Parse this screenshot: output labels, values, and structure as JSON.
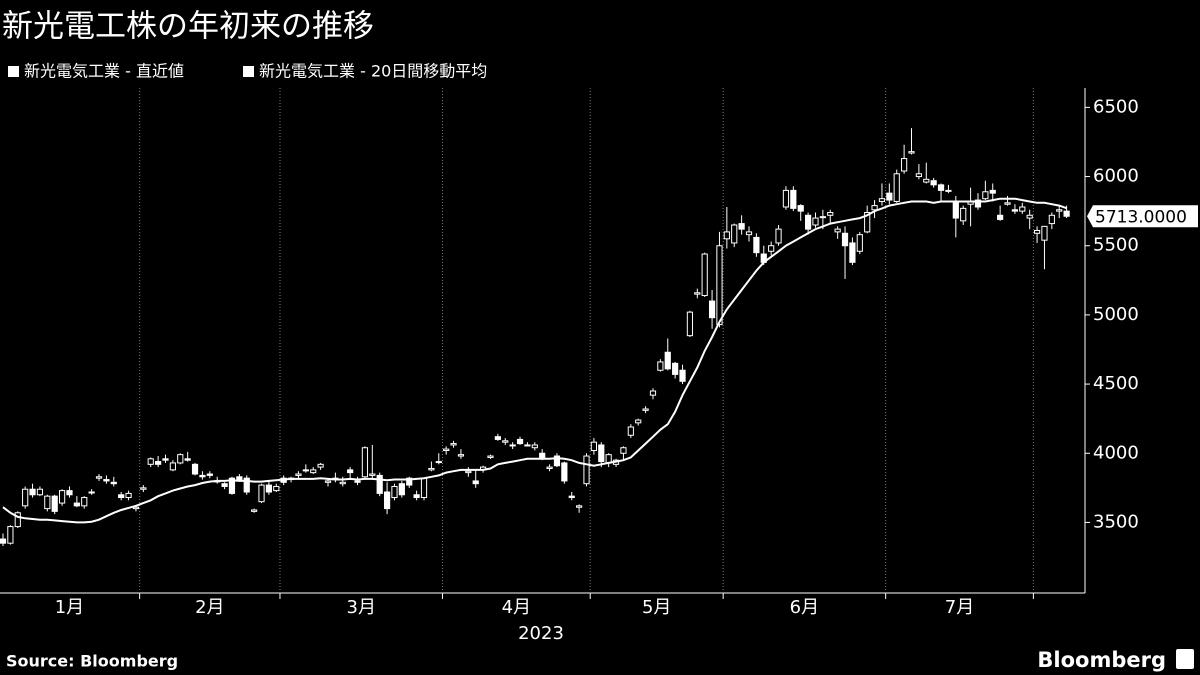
{
  "chart_data": {
    "type": "candlestick",
    "title": "新光電工株の年初来の推移",
    "legend": [
      "新光電気工業 - 直近値",
      "新光電気工業 - 20日間移動平均"
    ],
    "x_label": "2023",
    "source": "Source: Bloomberg",
    "brand": "Bloomberg",
    "ylim": [
      2990,
      6640
    ],
    "yticks": [
      3500,
      4000,
      4500,
      5000,
      5500,
      6000,
      6500
    ],
    "up_color": "#000000",
    "down_color": "#ffffff",
    "line_color": "#ffffff",
    "last_label": {
      "value": 5713,
      "label": "5713.0000"
    },
    "months": [
      {
        "label": "1月",
        "candles": [
          [
            3380,
            3420,
            3330,
            3350
          ],
          [
            3350,
            3480,
            3340,
            3470
          ],
          [
            3470,
            3580,
            3460,
            3570
          ],
          [
            3620,
            3760,
            3600,
            3740
          ],
          [
            3740,
            3780,
            3680,
            3700
          ],
          [
            3700,
            3760,
            3690,
            3740
          ],
          [
            3600,
            3700,
            3580,
            3690
          ],
          [
            3690,
            3700,
            3560,
            3580
          ],
          [
            3640,
            3740,
            3620,
            3730
          ],
          [
            3730,
            3760,
            3680,
            3700
          ],
          [
            3640,
            3690,
            3610,
            3620
          ],
          [
            3620,
            3690,
            3600,
            3680
          ],
          [
            3720,
            3740,
            3700,
            3720
          ],
          [
            3820,
            3850,
            3800,
            3830
          ],
          [
            3810,
            3840,
            3780,
            3800
          ],
          [
            3790,
            3830,
            3760,
            3780
          ],
          [
            3700,
            3720,
            3660,
            3680
          ],
          [
            3680,
            3730,
            3660,
            3710
          ],
          [
            3600,
            3620,
            3580,
            3610
          ]
        ],
        "ma": [
          3610,
          3570,
          3540,
          3530,
          3525,
          3520,
          3520,
          3515,
          3510,
          3505,
          3500,
          3500,
          3505,
          3520,
          3545,
          3570,
          3590,
          3605,
          3620
        ]
      },
      {
        "label": "2月",
        "candles": [
          [
            3740,
            3770,
            3720,
            3750
          ],
          [
            3920,
            3970,
            3900,
            3960
          ],
          [
            3940,
            3980,
            3900,
            3920
          ],
          [
            3960,
            3990,
            3930,
            3950
          ],
          [
            3880,
            3950,
            3870,
            3930
          ],
          [
            3930,
            4000,
            3920,
            3990
          ],
          [
            3960,
            4010,
            3940,
            3950
          ],
          [
            3920,
            3930,
            3840,
            3850
          ],
          [
            3840,
            3870,
            3810,
            3830
          ],
          [
            3850,
            3870,
            3820,
            3840
          ],
          [
            3800,
            3830,
            3780,
            3800
          ],
          [
            3780,
            3790,
            3740,
            3760
          ],
          [
            3820,
            3830,
            3700,
            3710
          ],
          [
            3830,
            3850,
            3800,
            3810
          ],
          [
            3820,
            3840,
            3700,
            3720
          ],
          [
            3580,
            3600,
            3570,
            3590
          ],
          [
            3650,
            3780,
            3640,
            3770
          ],
          [
            3770,
            3800,
            3700,
            3720
          ],
          [
            3730,
            3780,
            3720,
            3760
          ]
        ],
        "ma": [
          3640,
          3660,
          3690,
          3710,
          3730,
          3745,
          3760,
          3770,
          3785,
          3795,
          3800,
          3800,
          3805,
          3800,
          3800,
          3795,
          3795,
          3800,
          3805
        ]
      },
      {
        "label": "3月",
        "candles": [
          [
            3820,
            3840,
            3770,
            3790
          ],
          [
            3810,
            3830,
            3790,
            3820
          ],
          [
            3840,
            3870,
            3820,
            3850
          ],
          [
            3880,
            3920,
            3860,
            3880
          ],
          [
            3860,
            3900,
            3850,
            3880
          ],
          [
            3900,
            3930,
            3880,
            3920
          ],
          [
            3790,
            3820,
            3760,
            3800
          ],
          [
            3820,
            3860,
            3790,
            3810
          ],
          [
            3780,
            3830,
            3760,
            3790
          ],
          [
            3880,
            3900,
            3820,
            3860
          ],
          [
            3800,
            3830,
            3770,
            3790
          ],
          [
            3830,
            4050,
            3820,
            4040
          ],
          [
            3840,
            4060,
            3810,
            3850
          ],
          [
            3840,
            3860,
            3690,
            3710
          ],
          [
            3720,
            3790,
            3560,
            3600
          ],
          [
            3680,
            3780,
            3660,
            3760
          ],
          [
            3780,
            3800,
            3680,
            3700
          ],
          [
            3820,
            3830,
            3750,
            3770
          ],
          [
            3700,
            3730,
            3660,
            3680
          ],
          [
            3680,
            3820,
            3660,
            3820
          ],
          [
            3880,
            3940,
            3870,
            3890
          ],
          [
            3940,
            4000,
            3920,
            3940
          ]
        ],
        "ma": [
          3810,
          3815,
          3815,
          3815,
          3815,
          3820,
          3815,
          3810,
          3810,
          3815,
          3810,
          3815,
          3815,
          3810,
          3805,
          3810,
          3810,
          3810,
          3815,
          3820,
          3830,
          3840
        ]
      },
      {
        "label": "4月",
        "candles": [
          [
            4020,
            4050,
            3990,
            4030
          ],
          [
            4060,
            4090,
            4040,
            4070
          ],
          [
            3980,
            4030,
            3960,
            3990
          ],
          [
            3860,
            3900,
            3830,
            3870
          ],
          [
            3800,
            3880,
            3750,
            3780
          ],
          [
            3880,
            3910,
            3860,
            3900
          ],
          [
            3970,
            3990,
            3960,
            3980
          ],
          [
            4120,
            4140,
            4090,
            4100
          ],
          [
            4080,
            4110,
            4060,
            4090
          ],
          [
            4060,
            4080,
            4030,
            4060
          ],
          [
            4100,
            4120,
            4060,
            4070
          ],
          [
            4060,
            4080,
            4050,
            4060
          ],
          [
            4040,
            4080,
            4020,
            4060
          ],
          [
            4000,
            4030,
            3950,
            3960
          ],
          [
            3890,
            3920,
            3870,
            3900
          ],
          [
            3980,
            4000,
            3900,
            3910
          ],
          [
            3930,
            3940,
            3780,
            3800
          ],
          [
            3690,
            3720,
            3660,
            3680
          ],
          [
            3610,
            3630,
            3570,
            3620
          ],
          [
            3780,
            4000,
            3760,
            3980
          ]
        ],
        "ma": [
          3860,
          3870,
          3880,
          3880,
          3880,
          3880,
          3890,
          3920,
          3930,
          3940,
          3950,
          3960,
          3960,
          3960,
          3960,
          3965,
          3960,
          3950,
          3930,
          3920
        ]
      },
      {
        "label": "5月",
        "candles": [
          [
            4020,
            4110,
            3990,
            4080
          ],
          [
            4060,
            4080,
            3900,
            3940
          ],
          [
            3930,
            4000,
            3900,
            3990
          ],
          [
            3920,
            3960,
            3900,
            3950
          ],
          [
            4000,
            4050,
            3950,
            4040
          ],
          [
            4130,
            4210,
            4110,
            4190
          ],
          [
            4220,
            4250,
            4200,
            4240
          ],
          [
            4310,
            4340,
            4290,
            4320
          ],
          [
            4420,
            4470,
            4390,
            4450
          ],
          [
            4600,
            4680,
            4590,
            4660
          ],
          [
            4730,
            4830,
            4600,
            4610
          ],
          [
            4650,
            4660,
            4540,
            4570
          ],
          [
            4600,
            4640,
            4500,
            4520
          ],
          [
            4850,
            5030,
            4840,
            5020
          ],
          [
            5150,
            5190,
            5120,
            5160
          ],
          [
            5140,
            5450,
            5130,
            5440
          ],
          [
            5100,
            5180,
            4900,
            4980
          ],
          [
            4930,
            5600,
            4910,
            5500
          ]
        ],
        "ma": [
          3910,
          3920,
          3930,
          3940,
          3950,
          3970,
          4020,
          4070,
          4120,
          4170,
          4210,
          4300,
          4420,
          4520,
          4620,
          4740,
          4840,
          4950
        ]
      },
      {
        "label": "6月",
        "candles": [
          [
            5550,
            5780,
            5480,
            5600
          ],
          [
            5520,
            5660,
            5490,
            5650
          ],
          [
            5660,
            5720,
            5580,
            5620
          ],
          [
            5580,
            5640,
            5530,
            5600
          ],
          [
            5560,
            5590,
            5420,
            5450
          ],
          [
            5440,
            5500,
            5360,
            5380
          ],
          [
            5460,
            5530,
            5430,
            5500
          ],
          [
            5520,
            5650,
            5500,
            5620
          ],
          [
            5780,
            5930,
            5760,
            5900
          ],
          [
            5900,
            5930,
            5750,
            5770
          ],
          [
            5790,
            5800,
            5680,
            5750
          ],
          [
            5720,
            5740,
            5580,
            5620
          ],
          [
            5650,
            5740,
            5630,
            5700
          ],
          [
            5710,
            5760,
            5620,
            5710
          ],
          [
            5720,
            5760,
            5660,
            5740
          ],
          [
            5600,
            5640,
            5550,
            5620
          ],
          [
            5590,
            5640,
            5260,
            5500
          ],
          [
            5520,
            5560,
            5360,
            5380
          ],
          [
            5460,
            5600,
            5440,
            5580
          ],
          [
            5600,
            5790,
            5590,
            5740
          ],
          [
            5760,
            5830,
            5700,
            5790
          ],
          [
            5820,
            5950,
            5790,
            5840
          ]
        ],
        "ma": [
          5040,
          5110,
          5180,
          5250,
          5320,
          5380,
          5420,
          5460,
          5500,
          5530,
          5560,
          5590,
          5620,
          5640,
          5660,
          5670,
          5680,
          5690,
          5700,
          5720,
          5750,
          5770
        ]
      },
      {
        "label": "7月",
        "candles": [
          [
            5880,
            5950,
            5800,
            5830
          ],
          [
            5820,
            6050,
            5810,
            6020
          ],
          [
            6040,
            6230,
            6020,
            6130
          ],
          [
            6170,
            6350,
            6160,
            6180
          ],
          [
            6000,
            6090,
            5980,
            6020
          ],
          [
            5960,
            6100,
            5950,
            5980
          ],
          [
            5970,
            5990,
            5920,
            5940
          ],
          [
            5940,
            5950,
            5820,
            5900
          ],
          [
            5900,
            5940,
            5880,
            5900
          ],
          [
            5820,
            5860,
            5560,
            5700
          ],
          [
            5680,
            5790,
            5650,
            5770
          ],
          [
            5800,
            5920,
            5640,
            5820
          ],
          [
            5830,
            5880,
            5760,
            5780
          ],
          [
            5840,
            5970,
            5830,
            5890
          ],
          [
            5900,
            5950,
            5820,
            5880
          ],
          [
            5720,
            5790,
            5680,
            5690
          ],
          [
            5800,
            5860,
            5790,
            5810
          ],
          [
            5760,
            5800,
            5730,
            5750
          ],
          [
            5750,
            5810,
            5730,
            5780
          ],
          [
            5700,
            5760,
            5620,
            5720
          ]
        ],
        "ma": [
          5790,
          5800,
          5810,
          5820,
          5820,
          5820,
          5810,
          5820,
          5820,
          5820,
          5820,
          5820,
          5820,
          5820,
          5830,
          5840,
          5840,
          5840,
          5830,
          5820
        ]
      },
      {
        "label": null,
        "candles": [
          [
            5590,
            5640,
            5520,
            5610
          ],
          [
            5540,
            5640,
            5330,
            5640
          ],
          [
            5660,
            5740,
            5620,
            5720
          ],
          [
            5750,
            5790,
            5700,
            5760
          ],
          [
            5750,
            5790,
            5700,
            5713
          ]
        ],
        "ma": [
          5810,
          5810,
          5800,
          5790,
          5771
        ]
      }
    ]
  }
}
